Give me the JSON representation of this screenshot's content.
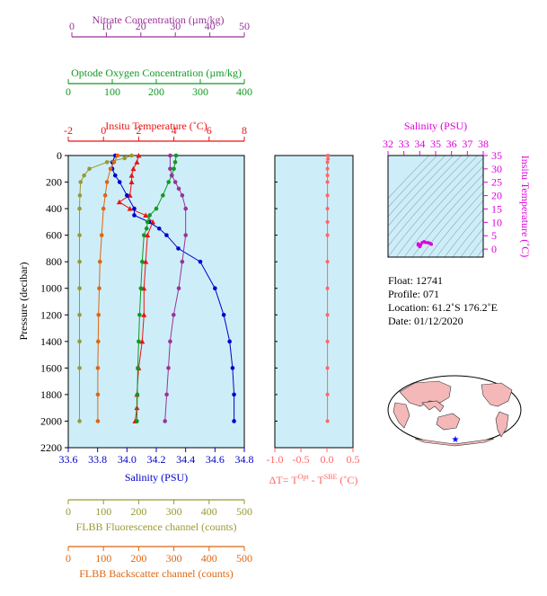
{
  "colors": {
    "nitrate": "#993399",
    "oxygen": "#119922",
    "temperature": "#ee1111",
    "salinity": "#0000cc",
    "fluorescence": "#999933",
    "backscatter": "#dd6611",
    "delta_t": "#ff6666",
    "ts_axis": "#dd00dd",
    "plot_bg": "#cdeef8"
  },
  "float_info": {
    "float": "Float:  12741",
    "profile": "Profile:  071",
    "location": "Location:  61.2˚S  176.2˚E",
    "date": "Date:  01/12/2020"
  },
  "chart_data": [
    {
      "type": "line",
      "role": "main-profile",
      "ylabel": "Pressure (decibar)",
      "ylim": [
        2200,
        0
      ],
      "yticks": [
        "0",
        "200",
        "400",
        "600",
        "800",
        "1000",
        "1200",
        "1400",
        "1600",
        "1800",
        "2000",
        "2200"
      ],
      "grid": false,
      "axes": {
        "nitrate": {
          "label": "Nitrate Concentration (µm/kg)",
          "range": [
            0,
            50
          ],
          "ticks": [
            "0",
            "10",
            "20",
            "30",
            "40",
            "50"
          ]
        },
        "oxygen": {
          "label": "Optode Oxygen Concentration (µm/kg)",
          "range": [
            0,
            400
          ],
          "ticks": [
            "0",
            "100",
            "200",
            "300",
            "400"
          ]
        },
        "temperature": {
          "label": "Insitu Temperature (˚C)",
          "range": [
            -2,
            8
          ],
          "ticks": [
            "-2",
            "0",
            "2",
            "4",
            "6",
            "8"
          ]
        },
        "salinity": {
          "label": "Salinity (PSU)",
          "range": [
            33.6,
            34.8
          ],
          "ticks": [
            "33.6",
            "33.8",
            "34.0",
            "34.2",
            "34.4",
            "34.6",
            "34.8"
          ]
        },
        "fluorescence": {
          "label": "FLBB Fluorescence channel (counts)",
          "range": [
            0,
            500
          ],
          "ticks": [
            "0",
            "100",
            "200",
            "300",
            "400",
            "500"
          ]
        },
        "backscatter": {
          "label": "FLBB Backscatter channel (counts)",
          "range": [
            0,
            500
          ],
          "ticks": [
            "0",
            "100",
            "200",
            "300",
            "400",
            "500"
          ]
        }
      },
      "series": [
        {
          "key": "temperature",
          "x": [
            2.0,
            1.9,
            1.7,
            1.6,
            1.6,
            1.5,
            0.9,
            1.5,
            2.4,
            2.8,
            2.5,
            2.4,
            2.3,
            2.3,
            2.2,
            2.0,
            1.9,
            1.9,
            1.8
          ],
          "y": [
            0,
            50,
            100,
            150,
            200,
            300,
            350,
            400,
            450,
            500,
            600,
            800,
            1000,
            1200,
            1400,
            1600,
            1800,
            1900,
            2000
          ]
        },
        {
          "key": "salinity",
          "x": [
            33.92,
            33.9,
            33.9,
            33.92,
            33.95,
            34.0,
            34.05,
            34.05,
            34.15,
            34.22,
            34.27,
            34.35,
            34.5,
            34.6,
            34.66,
            34.7,
            34.72,
            34.73,
            34.73
          ],
          "y": [
            0,
            50,
            100,
            150,
            200,
            300,
            400,
            450,
            500,
            550,
            600,
            700,
            800,
            1000,
            1200,
            1400,
            1600,
            1800,
            2000
          ]
        },
        {
          "key": "oxygen",
          "x": [
            245,
            243,
            240,
            235,
            228,
            215,
            200,
            185,
            180,
            178,
            172,
            168,
            165,
            162,
            160,
            158,
            157,
            156
          ],
          "y": [
            0,
            50,
            100,
            150,
            200,
            300,
            400,
            450,
            500,
            550,
            600,
            800,
            1000,
            1200,
            1400,
            1600,
            1800,
            2000
          ]
        },
        {
          "key": "nitrate",
          "x": [
            28.5,
            28.5,
            29.0,
            30.0,
            31.0,
            32.0,
            33.0,
            33.0,
            32.0,
            31.0,
            29.5,
            28.5,
            28.0,
            27.5,
            27.0
          ],
          "y": [
            0,
            100,
            150,
            200,
            250,
            300,
            400,
            600,
            800,
            1000,
            1200,
            1400,
            1600,
            1800,
            2000
          ]
        },
        {
          "key": "fluorescence",
          "x": [
            180,
            160,
            110,
            60,
            45,
            35,
            33,
            32,
            32,
            32,
            32,
            32,
            32,
            32,
            32
          ],
          "y": [
            0,
            20,
            50,
            100,
            150,
            200,
            300,
            400,
            600,
            800,
            1000,
            1200,
            1400,
            1600,
            2000
          ]
        },
        {
          "key": "backscatter",
          "x": [
            140,
            130,
            120,
            110,
            105,
            100,
            95,
            90,
            88,
            86,
            85,
            84,
            84,
            84
          ],
          "y": [
            0,
            50,
            100,
            200,
            300,
            400,
            600,
            800,
            1000,
            1200,
            1400,
            1600,
            1800,
            2000
          ]
        }
      ]
    },
    {
      "type": "line",
      "role": "delta-t",
      "xlabel": "ΔT= TOpt - TSBE (˚C)",
      "xlabel_parts": {
        "prefix": "ΔT= T",
        "sup1": "Opt",
        "mid": " - T",
        "sup2": "SBE",
        "suffix": " (˚C)"
      },
      "xlim": [
        -1.0,
        0.5
      ],
      "xticks": [
        "-1.0",
        "-0.5",
        "0.0",
        "0.5"
      ],
      "ylim": [
        2200,
        0
      ],
      "series": [
        {
          "name": "",
          "x": [
            0.02,
            0.02,
            0.01,
            0.01,
            0.01,
            0.01,
            0.01,
            0.01,
            0.01,
            0.01,
            0.01,
            0.01,
            0.01,
            0.01,
            0.01,
            0.01,
            0.01
          ],
          "y": [
            0,
            25,
            50,
            100,
            150,
            200,
            300,
            400,
            500,
            600,
            800,
            1000,
            1200,
            1400,
            1600,
            1800,
            2000
          ]
        }
      ]
    },
    {
      "type": "scatter",
      "role": "ts-diagram",
      "xlabel": "Salinity (PSU)",
      "ylabel": "Insitu Temperature (˚C)",
      "xlim": [
        32,
        38
      ],
      "ylim": [
        -3,
        35
      ],
      "xticks": [
        "32",
        "33",
        "34",
        "35",
        "36",
        "37",
        "38"
      ],
      "yticks": [
        "0",
        "5",
        "10",
        "15",
        "20",
        "25",
        "30",
        "35"
      ],
      "x": [
        33.9,
        33.95,
        33.9,
        34.0,
        34.05,
        34.15,
        34.27,
        34.35,
        34.5,
        34.6,
        34.7,
        34.73
      ],
      "y": [
        2.0,
        1.7,
        1.5,
        0.9,
        1.5,
        2.4,
        2.8,
        2.5,
        2.4,
        2.3,
        2.0,
        1.8
      ]
    }
  ]
}
